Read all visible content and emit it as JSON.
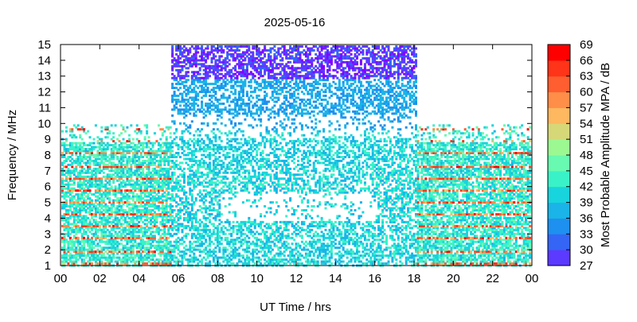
{
  "chart_data": {
    "type": "heatmap",
    "title": "2025-05-16",
    "xlabel": "UT Time / hrs",
    "ylabel": "Frequency / MHz",
    "xlim": [
      0,
      24
    ],
    "ylim": [
      1,
      15
    ],
    "x_ticks": [
      "00",
      "02",
      "04",
      "06",
      "08",
      "10",
      "12",
      "14",
      "16",
      "18",
      "20",
      "22",
      "00"
    ],
    "y_ticks": [
      "1",
      "2",
      "3",
      "4",
      "5",
      "6",
      "7",
      "8",
      "9",
      "10",
      "11",
      "12",
      "13",
      "14",
      "15"
    ],
    "colorbar": {
      "label": "Most Probable Amplitude MPA / dB",
      "ticks": [
        "27",
        "30",
        "33",
        "36",
        "39",
        "42",
        "45",
        "48",
        "51",
        "54",
        "57",
        "60",
        "63",
        "66",
        "69"
      ],
      "range": [
        27,
        69
      ],
      "colors": [
        "#8000ff",
        "#5c3aff",
        "#3565f5",
        "#1e90ef",
        "#1ab4e8",
        "#18d4dc",
        "#3af2c8",
        "#68fab0",
        "#9cf992",
        "#d6d878",
        "#fdb860",
        "#ff8e48",
        "#ff5e30",
        "#ff3418",
        "#ff0000"
      ]
    },
    "coverage": {
      "night_fmax_mhz": 10,
      "day_fmax_mhz": 15,
      "day_start_hr": 5.5,
      "day_end_hr": 18
    }
  }
}
